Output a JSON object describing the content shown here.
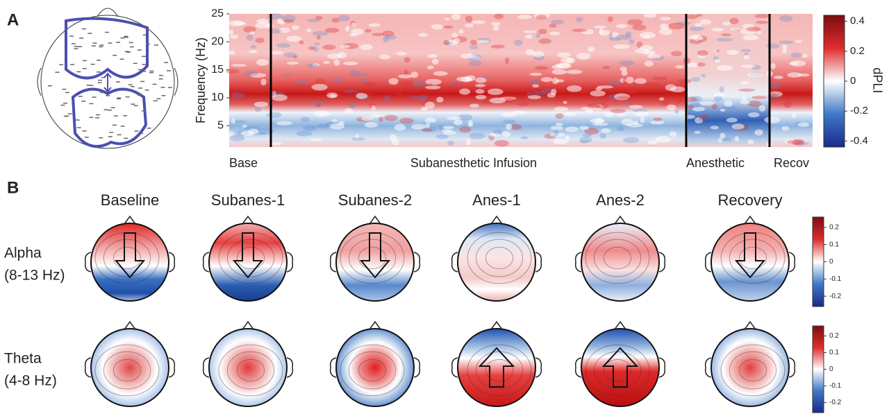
{
  "panel_a": {
    "label": "A",
    "spectrogram": {
      "y_label": "Frequency (Hz)",
      "ylim": [
        1.2,
        25
      ],
      "yticks": [
        25,
        20,
        15,
        10,
        5
      ],
      "epochs": [
        "Base",
        "Subanesthetic Infusion",
        "Anesthetic",
        "Recov"
      ]
    },
    "colorbar": {
      "label": "dPLI",
      "lim": [
        -0.44,
        0.44
      ],
      "ticks": [
        0.4,
        0.2,
        0,
        -0.2,
        -0.4
      ]
    }
  },
  "panel_b": {
    "label": "B",
    "columns": [
      "Baseline",
      "Subanes-1",
      "Subanes-2",
      "Anes-1",
      "Anes-2",
      "Recovery"
    ],
    "rows": [
      {
        "name": "Alpha",
        "band": "(8-13 Hz)"
      },
      {
        "name": "Theta",
        "band": "(4-8 Hz)"
      }
    ],
    "colorbar": {
      "lim": [
        -0.26,
        0.26
      ],
      "ticks": [
        0.2,
        0.1,
        0,
        -0.1,
        -0.2
      ]
    }
  }
}
